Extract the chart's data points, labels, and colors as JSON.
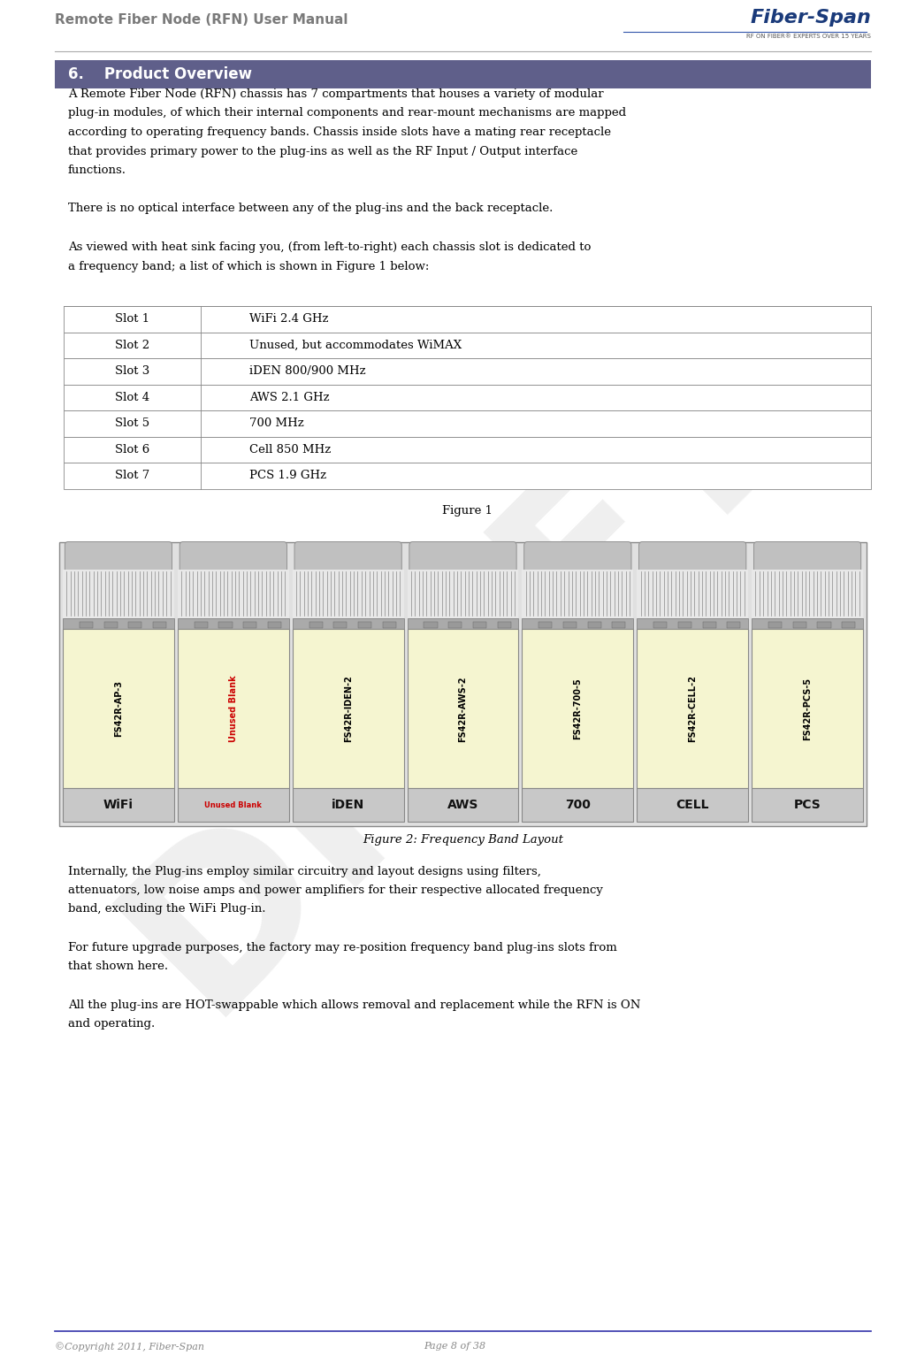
{
  "page_width": 10.28,
  "page_height": 15.41,
  "bg_color": "#ffffff",
  "header_title": "Remote Fiber Node (RFN) User Manual",
  "header_title_color": "#7a7a7a",
  "section_header_text": "6.    Product Overview",
  "section_header_bg": "#5f5f8a",
  "section_header_text_color": "#ffffff",
  "para1": "A Remote Fiber Node (RFN) chassis has 7 compartments that houses a variety of modular plug-in modules, of which their internal components and rear-mount mechanisms are mapped according to operating frequency bands.  Chassis inside slots have a mating rear receptacle that provides primary power to the plug-ins as well as the RF Input / Output interface functions.",
  "para2": "There is no optical interface between any of the plug-ins and the back receptacle.",
  "para3": "As viewed with heat sink facing you, (from left-to-right) each chassis slot is dedicated to a frequency band; a list of which is shown in Figure 1 below:",
  "table_slots": [
    "Slot 1",
    "Slot 2",
    "Slot 3",
    "Slot 4",
    "Slot 5",
    "Slot 6",
    "Slot 7"
  ],
  "table_bands": [
    "WiFi 2.4 GHz",
    "Unused, but accommodates WiMAX",
    "iDEN 800/900 MHz",
    "AWS 2.1 GHz",
    "700 MHz",
    "Cell 850 MHz",
    "PCS 1.9 GHz"
  ],
  "figure1_caption": "Figure 1",
  "figure2_caption": "Figure 2: Frequency Band Layout",
  "para4": "Internally, the Plug-ins employ similar circuitry and layout designs using filters, attenuators, low noise amps and power amplifiers for their respective allocated frequency band, excluding the WiFi Plug-in.",
  "para5": "For future upgrade purposes, the factory may re-position frequency band plug-ins slots from that shown here.",
  "para6": "All the plug-ins are HOT-swappable which allows removal and replacement while the RFN is ON and operating.",
  "footer_left": "©Copyright 2011, Fiber-Span",
  "footer_right": "Page 8 of 38",
  "footer_line_color": "#3333aa",
  "draft_text": "DRAFT",
  "module_labels": [
    "FS42R-AP-3",
    "Unused Blank",
    "FS42R-IDEN-2",
    "FS42R-AWS-2",
    "FS42R-700-5",
    "FS42R-CELL-2",
    "FS42R-PCS-5"
  ],
  "module_bottom_labels": [
    "WiFi",
    "Unused Blank",
    "iDEN",
    "AWS",
    "700",
    "CELL",
    "PCS"
  ],
  "module_body_color": "#f5f5d0",
  "module_label_color_normal": "#000000",
  "module_label_color_unused": "#cc0000",
  "bottom_bar_color": "#c8c8c8",
  "bottom_bar_text_color": "#111111",
  "bottom_bar_unused_color": "#cc0000",
  "heatsink_color": "#999999",
  "cap_color": "#aaaaaa"
}
